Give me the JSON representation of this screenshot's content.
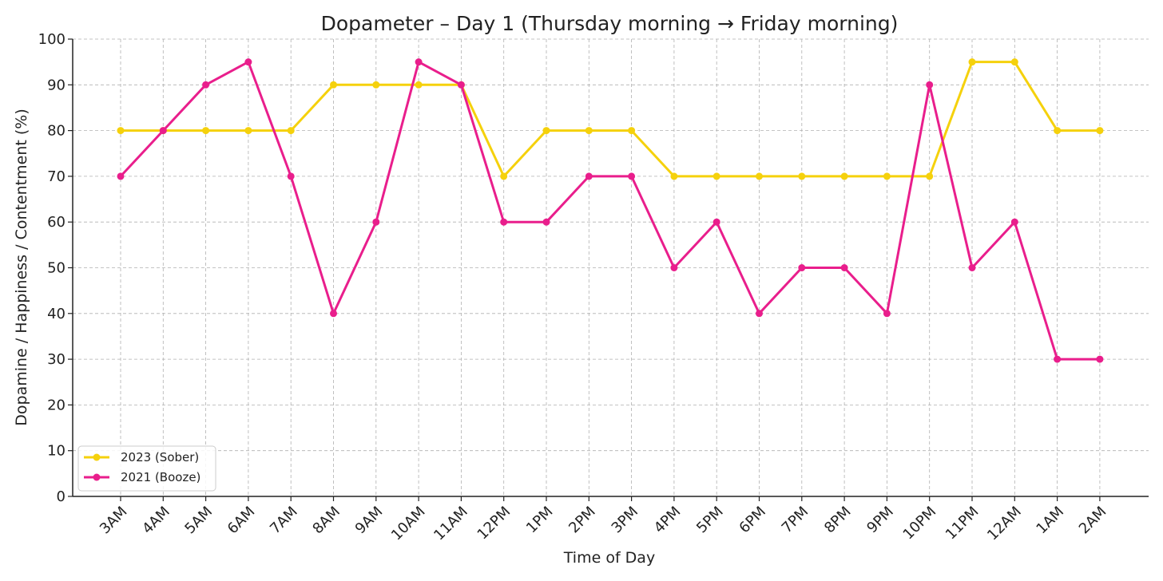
{
  "chart_data": {
    "type": "line",
    "title": "Dopameter – Day 1 (Thursday morning → Friday morning)",
    "xlabel": "Time of Day",
    "ylabel": "Dopamine / Happiness / Contentment (%)",
    "ylim": [
      0,
      100
    ],
    "yticks": [
      0,
      10,
      20,
      30,
      40,
      50,
      60,
      70,
      80,
      90,
      100
    ],
    "grid": true,
    "legend_position": "lower-left",
    "categories": [
      "3AM",
      "4AM",
      "5AM",
      "6AM",
      "7AM",
      "8AM",
      "9AM",
      "10AM",
      "11AM",
      "12PM",
      "1PM",
      "2PM",
      "3PM",
      "4PM",
      "5PM",
      "6PM",
      "7PM",
      "8PM",
      "9PM",
      "10PM",
      "11PM",
      "12AM",
      "1AM",
      "2AM"
    ],
    "series": [
      {
        "name": "2023 (Sober)",
        "color": "#f5d10c",
        "values": [
          80,
          80,
          80,
          80,
          80,
          90,
          90,
          90,
          90,
          70,
          80,
          80,
          80,
          70,
          70,
          70,
          70,
          70,
          70,
          70,
          95,
          95,
          80,
          80
        ]
      },
      {
        "name": "2021 (Booze)",
        "color": "#e91e8c",
        "values": [
          70,
          80,
          90,
          95,
          70,
          40,
          60,
          95,
          90,
          60,
          60,
          70,
          70,
          50,
          60,
          40,
          50,
          50,
          40,
          90,
          50,
          60,
          30,
          30
        ]
      }
    ]
  }
}
